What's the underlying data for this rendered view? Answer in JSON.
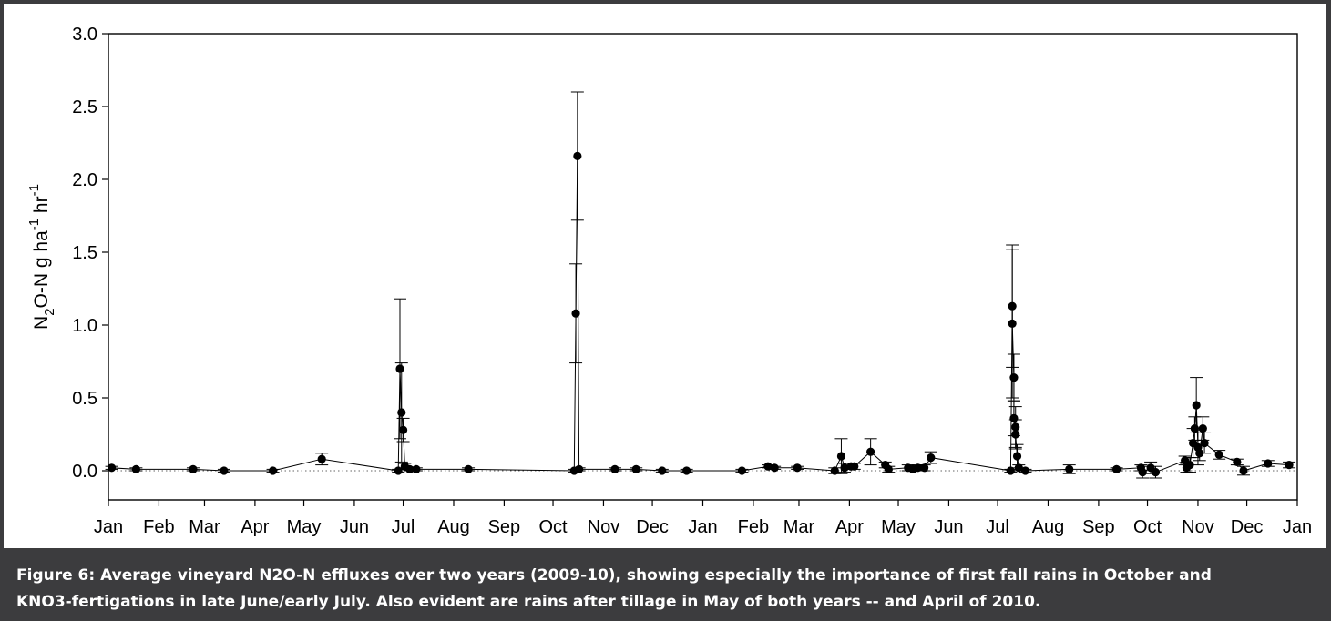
{
  "caption": {
    "line1": "Figure 6: Average vineyard N2O-N effluxes over two years (2009-10), showing especially the importance of first fall rains in October and",
    "line2": "KNO3-fertigations in late June/early July. Also evident are rains after tillage in May of both years -- and April of 2010."
  },
  "chart_data": {
    "type": "scatter",
    "connected": true,
    "ylabel": {
      "base": "N",
      "sub": "2",
      "rest1": "O-N g ha",
      "sup1": "-1",
      "rest2": " hr",
      "sup2": "-1"
    },
    "xlabel": "",
    "title": "",
    "ylim": [
      -0.2,
      3.0
    ],
    "yticks": [
      "0.0",
      "0.5",
      "1.0",
      "1.5",
      "2.0",
      "2.5",
      "3.0"
    ],
    "ytick_values": [
      0.0,
      0.5,
      1.0,
      1.5,
      2.0,
      2.5,
      3.0
    ],
    "xlim": [
      "2009-01-01",
      "2011-01-01"
    ],
    "xtick_labels": [
      "Jan",
      "Feb",
      "Mar",
      "Apr",
      "May",
      "Jun",
      "Jul",
      "Aug",
      "Sep",
      "Oct",
      "Nov",
      "Dec",
      "Jan",
      "Feb",
      "Mar",
      "Apr",
      "May",
      "Jun",
      "Jul",
      "Aug",
      "Sep",
      "Oct",
      "Nov",
      "Dec",
      "Jan"
    ],
    "xtick_dates": [
      "2009-01-01",
      "2009-02-01",
      "2009-03-01",
      "2009-04-01",
      "2009-05-01",
      "2009-06-01",
      "2009-07-01",
      "2009-08-01",
      "2009-09-01",
      "2009-10-01",
      "2009-11-01",
      "2009-12-01",
      "2010-01-01",
      "2010-02-01",
      "2010-03-01",
      "2010-04-01",
      "2010-05-01",
      "2010-06-01",
      "2010-07-01",
      "2010-08-01",
      "2010-09-01",
      "2010-10-01",
      "2010-11-01",
      "2010-12-01",
      "2011-01-01"
    ],
    "reference_line": {
      "y": 0,
      "style": "dotted"
    },
    "series": [
      {
        "points": [
          {
            "x": "2009-01-03",
            "y": 0.02,
            "err": 0.01
          },
          {
            "x": "2009-01-18",
            "y": 0.01,
            "err": 0.01
          },
          {
            "x": "2009-02-22",
            "y": 0.01,
            "err": 0.01
          },
          {
            "x": "2009-03-13",
            "y": 0.0,
            "err": 0.01
          },
          {
            "x": "2009-04-12",
            "y": 0.0,
            "err": 0.01
          },
          {
            "x": "2009-05-12",
            "y": 0.08,
            "err": 0.04
          },
          {
            "x": "2009-06-28",
            "y": 0.0,
            "err": 0.01
          },
          {
            "x": "2009-06-29",
            "y": 0.7,
            "err": 0.48
          },
          {
            "x": "2009-06-30",
            "y": 0.4,
            "err": 0.34
          },
          {
            "x": "2009-07-01",
            "y": 0.28,
            "err": 0.08
          },
          {
            "x": "2009-07-02",
            "y": 0.03,
            "err": 0.02
          },
          {
            "x": "2009-07-05",
            "y": 0.01,
            "err": 0.01
          },
          {
            "x": "2009-07-09",
            "y": 0.01,
            "err": 0.01
          },
          {
            "x": "2009-08-10",
            "y": 0.01,
            "err": 0.01
          },
          {
            "x": "2009-10-14",
            "y": 0.0,
            "err": 0.01
          },
          {
            "x": "2009-10-15",
            "y": 1.08,
            "err": 0.34
          },
          {
            "x": "2009-10-16",
            "y": 2.16,
            "err": 0.44
          },
          {
            "x": "2009-10-17",
            "y": 0.01,
            "err": 0.01
          },
          {
            "x": "2009-11-08",
            "y": 0.01,
            "err": 0.01
          },
          {
            "x": "2009-11-21",
            "y": 0.01,
            "err": 0.01
          },
          {
            "x": "2009-12-07",
            "y": 0.0,
            "err": 0.01
          },
          {
            "x": "2009-12-22",
            "y": 0.0,
            "err": 0.01
          },
          {
            "x": "2010-01-25",
            "y": 0.0,
            "err": 0.01
          },
          {
            "x": "2010-02-10",
            "y": 0.03,
            "err": 0.01
          },
          {
            "x": "2010-02-14",
            "y": 0.02,
            "err": 0.01
          },
          {
            "x": "2010-02-28",
            "y": 0.02,
            "err": 0.01
          },
          {
            "x": "2010-03-23",
            "y": 0.0,
            "err": 0.02
          },
          {
            "x": "2010-03-27",
            "y": 0.1,
            "err": 0.12
          },
          {
            "x": "2010-03-29",
            "y": 0.02,
            "err": 0.03
          },
          {
            "x": "2010-04-02",
            "y": 0.03,
            "err": 0.02
          },
          {
            "x": "2010-04-04",
            "y": 0.03,
            "err": 0.02
          },
          {
            "x": "2010-04-14",
            "y": 0.13,
            "err": 0.09
          },
          {
            "x": "2010-04-23",
            "y": 0.04,
            "err": 0.02
          },
          {
            "x": "2010-04-25",
            "y": 0.01,
            "err": 0.02
          },
          {
            "x": "2010-05-07",
            "y": 0.02,
            "err": 0.02
          },
          {
            "x": "2010-05-10",
            "y": 0.01,
            "err": 0.01
          },
          {
            "x": "2010-05-13",
            "y": 0.02,
            "err": 0.02
          },
          {
            "x": "2010-05-17",
            "y": 0.02,
            "err": 0.02
          },
          {
            "x": "2010-05-21",
            "y": 0.09,
            "err": 0.04
          },
          {
            "x": "2010-07-09",
            "y": 0.0,
            "err": 0.01
          },
          {
            "x": "2010-07-10",
            "y": 1.13,
            "err": 0.42
          },
          {
            "x": "2010-07-10",
            "y": 1.01,
            "err": 0.51
          },
          {
            "x": "2010-07-11",
            "y": 0.64,
            "err": 0.16
          },
          {
            "x": "2010-07-11",
            "y": 0.36,
            "err": 0.12
          },
          {
            "x": "2010-07-12",
            "y": 0.3,
            "err": 0.14
          },
          {
            "x": "2010-07-12",
            "y": 0.25,
            "err": 0.1
          },
          {
            "x": "2010-07-13",
            "y": 0.1,
            "err": 0.08
          },
          {
            "x": "2010-07-14",
            "y": 0.02,
            "err": 0.02
          },
          {
            "x": "2010-07-18",
            "y": 0.0,
            "err": 0.01
          },
          {
            "x": "2010-08-14",
            "y": 0.01,
            "err": 0.03
          },
          {
            "x": "2010-09-12",
            "y": 0.01,
            "err": 0.01
          },
          {
            "x": "2010-09-27",
            "y": 0.02,
            "err": 0.02
          },
          {
            "x": "2010-09-28",
            "y": -0.01,
            "err": 0.04
          },
          {
            "x": "2010-10-03",
            "y": 0.02,
            "err": 0.04
          },
          {
            "x": "2010-10-06",
            "y": -0.01,
            "err": 0.04
          },
          {
            "x": "2010-10-24",
            "y": 0.07,
            "err": 0.03
          },
          {
            "x": "2010-10-25",
            "y": 0.02,
            "err": 0.03
          },
          {
            "x": "2010-10-27",
            "y": 0.04,
            "err": 0.05
          },
          {
            "x": "2010-10-29",
            "y": 0.19,
            "err": 0.1
          },
          {
            "x": "2010-10-30",
            "y": 0.29,
            "err": 0.08
          },
          {
            "x": "2010-10-31",
            "y": 0.45,
            "err": 0.19
          },
          {
            "x": "2010-11-01",
            "y": 0.16,
            "err": 0.12
          },
          {
            "x": "2010-11-02",
            "y": 0.12,
            "err": 0.05
          },
          {
            "x": "2010-11-04",
            "y": 0.29,
            "err": 0.08
          },
          {
            "x": "2010-11-05",
            "y": 0.19,
            "err": 0.07
          },
          {
            "x": "2010-11-14",
            "y": 0.11,
            "err": 0.03
          },
          {
            "x": "2010-11-25",
            "y": 0.06,
            "err": 0.02
          },
          {
            "x": "2010-11-29",
            "y": 0.0,
            "err": 0.03
          },
          {
            "x": "2010-12-14",
            "y": 0.05,
            "err": 0.02
          },
          {
            "x": "2010-12-27",
            "y": 0.04,
            "err": 0.02
          }
        ]
      }
    ]
  }
}
